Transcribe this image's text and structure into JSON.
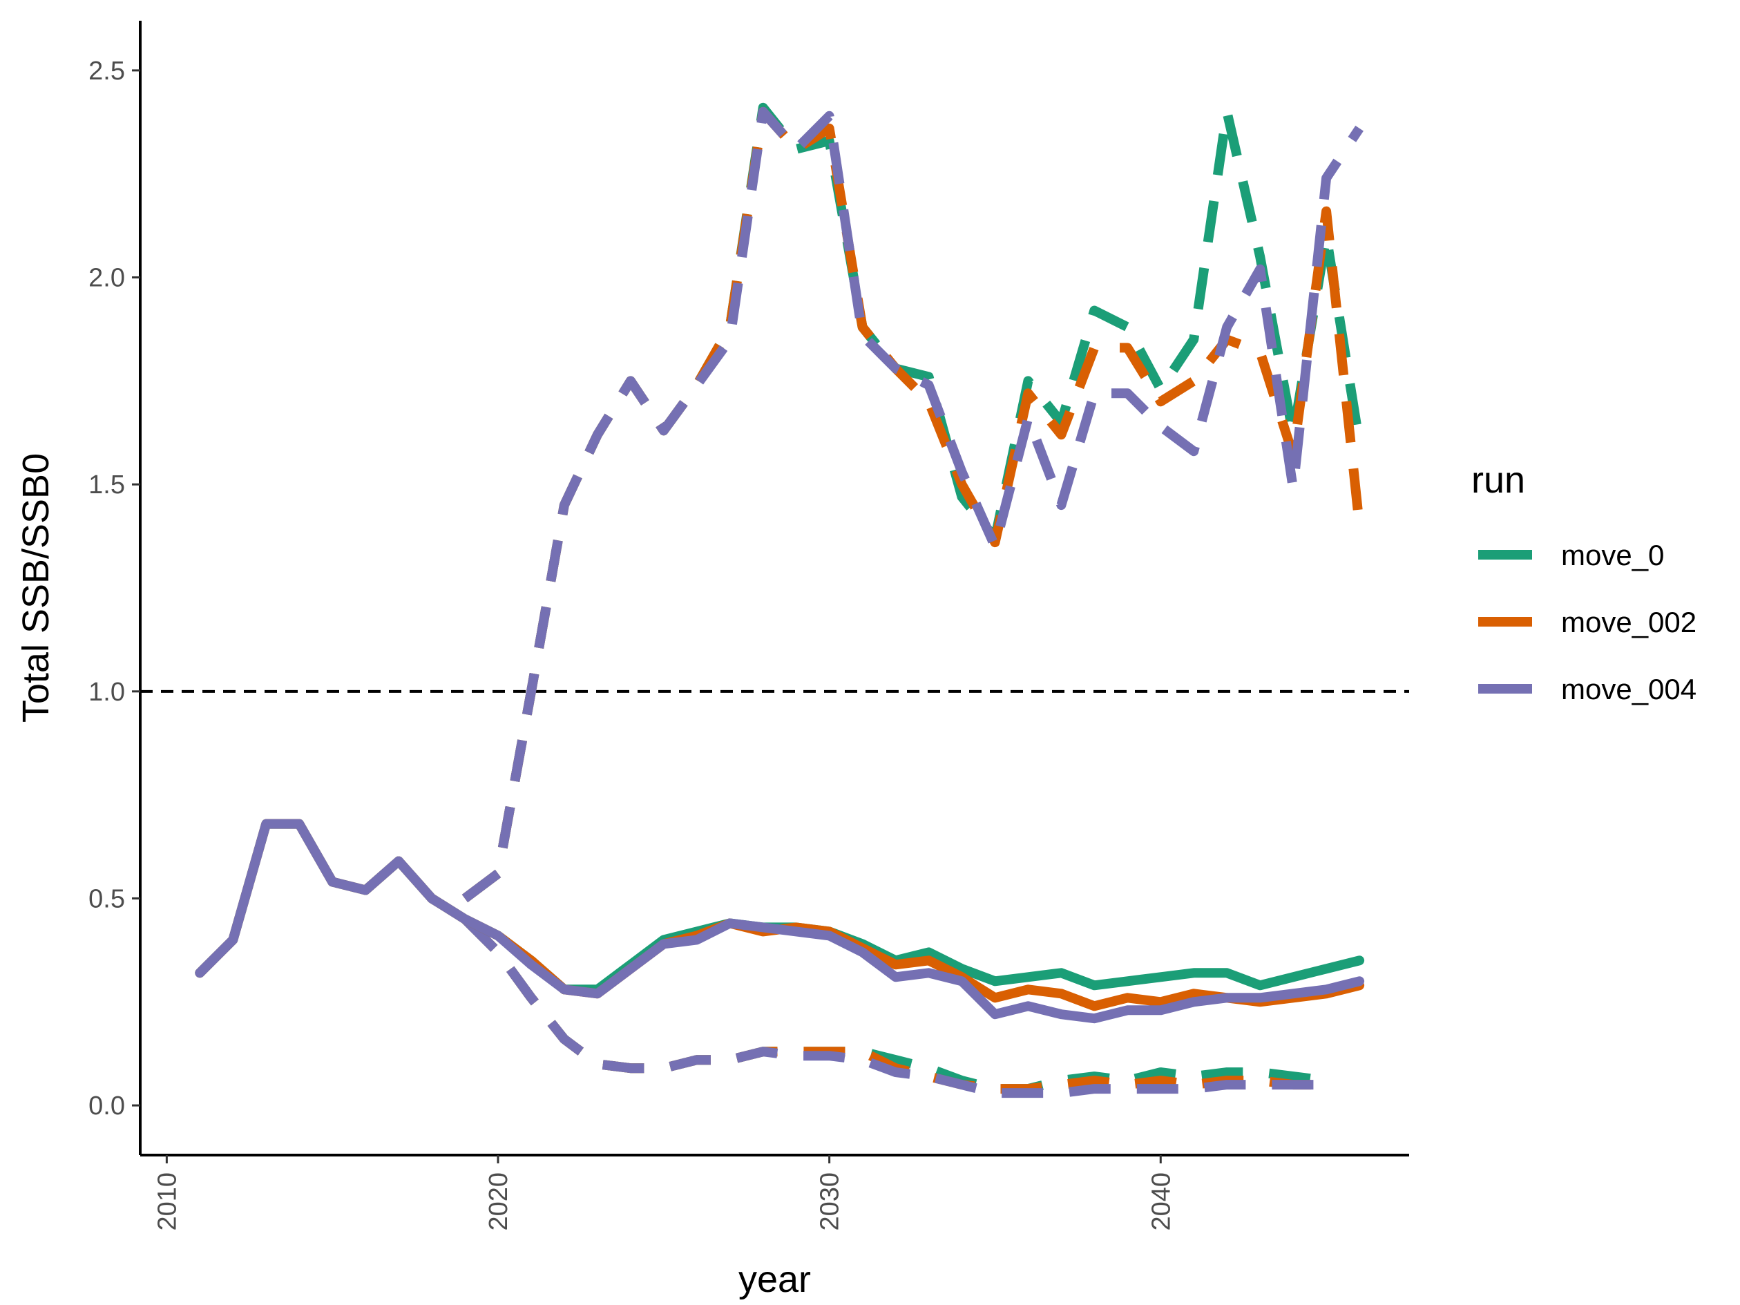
{
  "chart_data": {
    "type": "line",
    "xlabel": "year",
    "ylabel": "Total SSB/SSB0",
    "xlim": [
      2009.2,
      2047.5
    ],
    "ylim": [
      -0.12,
      2.62
    ],
    "xticks": [
      2010,
      2020,
      2030,
      2040
    ],
    "xtick_labels": [
      "2010",
      "2020",
      "2030",
      "2040"
    ],
    "yticks": [
      0.0,
      0.5,
      1.0,
      1.5,
      2.0,
      2.5
    ],
    "ytick_labels": [
      "0.0",
      "0.5",
      "1.0",
      "1.5",
      "2.0",
      "2.5"
    ],
    "reference_line": {
      "y": 1.0,
      "style": "dashed",
      "color": "#000000"
    },
    "grid": false,
    "legend": {
      "title": "run",
      "position": "right",
      "entries": [
        "move_0",
        "move_002",
        "move_004"
      ]
    },
    "colors": {
      "move_0": "#1b9e77",
      "move_002": "#d95f02",
      "move_004": "#7570b3"
    },
    "series": [
      {
        "name": "move_0",
        "style": "dashed",
        "color": "#1b9e77",
        "x": [
          2019,
          2020,
          2021,
          2022,
          2023,
          2024,
          2025,
          2026,
          2027,
          2028,
          2029,
          2030,
          2031,
          2032,
          2033,
          2034,
          2035,
          2036,
          2037,
          2038,
          2039,
          2040,
          2041,
          2042,
          2043,
          2044,
          2045,
          2046
        ],
        "y": [
          0.5,
          0.56,
          1.0,
          1.45,
          1.62,
          1.75,
          1.63,
          1.74,
          1.88,
          2.41,
          2.31,
          2.33,
          1.88,
          1.78,
          1.76,
          1.47,
          1.37,
          1.75,
          1.65,
          1.92,
          1.88,
          1.73,
          1.85,
          2.4,
          2.05,
          1.62,
          2.1,
          1.6
        ]
      },
      {
        "name": "move_002",
        "style": "dashed",
        "color": "#d95f02",
        "x": [
          2019,
          2020,
          2021,
          2022,
          2023,
          2024,
          2025,
          2026,
          2027,
          2028,
          2029,
          2030,
          2031,
          2032,
          2033,
          2034,
          2035,
          2036,
          2037,
          2038,
          2039,
          2040,
          2041,
          2042,
          2043,
          2044,
          2045,
          2046
        ],
        "y": [
          0.5,
          0.56,
          1.0,
          1.45,
          1.62,
          1.75,
          1.63,
          1.74,
          1.88,
          2.4,
          2.31,
          2.36,
          1.88,
          1.78,
          1.7,
          1.5,
          1.36,
          1.72,
          1.62,
          1.83,
          1.83,
          1.7,
          1.75,
          1.85,
          1.82,
          1.57,
          2.16,
          1.4
        ]
      },
      {
        "name": "move_004",
        "style": "dashed",
        "color": "#7570b3",
        "x": [
          2019,
          2020,
          2021,
          2022,
          2023,
          2024,
          2025,
          2026,
          2027,
          2028,
          2029,
          2030,
          2031,
          2032,
          2033,
          2034,
          2035,
          2036,
          2037,
          2038,
          2039,
          2040,
          2041,
          2042,
          2043,
          2044,
          2045,
          2046
        ],
        "y": [
          0.5,
          0.56,
          1.0,
          1.45,
          1.62,
          1.75,
          1.63,
          1.74,
          1.85,
          2.4,
          2.31,
          2.39,
          1.86,
          1.78,
          1.74,
          1.53,
          1.35,
          1.66,
          1.45,
          1.72,
          1.72,
          1.64,
          1.58,
          1.88,
          2.02,
          1.49,
          2.24,
          2.36
        ]
      },
      {
        "name": "move_0",
        "style": "dashed",
        "color": "#1b9e77",
        "x": [
          2019,
          2020,
          2021,
          2022,
          2023,
          2024,
          2025,
          2026,
          2027,
          2028,
          2029,
          2030,
          2031,
          2032,
          2033,
          2034,
          2035,
          2036,
          2037,
          2038,
          2039,
          2040,
          2041,
          2042,
          2043,
          2044,
          2045
        ],
        "y": [
          0.45,
          0.37,
          0.26,
          0.16,
          0.1,
          0.09,
          0.09,
          0.11,
          0.11,
          0.13,
          0.13,
          0.13,
          0.13,
          0.11,
          0.09,
          0.06,
          0.04,
          0.04,
          0.06,
          0.07,
          0.06,
          0.08,
          0.07,
          0.08,
          0.08,
          0.07,
          0.06
        ]
      },
      {
        "name": "move_002",
        "style": "dashed",
        "color": "#d95f02",
        "x": [
          2019,
          2020,
          2021,
          2022,
          2023,
          2024,
          2025,
          2026,
          2027,
          2028,
          2029,
          2030,
          2031,
          2032,
          2033,
          2034,
          2035,
          2036,
          2037,
          2038,
          2039,
          2040,
          2041,
          2042,
          2043,
          2044,
          2045
        ],
        "y": [
          0.45,
          0.37,
          0.26,
          0.16,
          0.1,
          0.09,
          0.09,
          0.11,
          0.11,
          0.13,
          0.13,
          0.13,
          0.13,
          0.09,
          0.07,
          0.05,
          0.04,
          0.04,
          0.05,
          0.06,
          0.05,
          0.06,
          0.05,
          0.06,
          0.06,
          0.05,
          0.05
        ]
      },
      {
        "name": "move_004",
        "style": "dashed",
        "color": "#7570b3",
        "x": [
          2019,
          2020,
          2021,
          2022,
          2023,
          2024,
          2025,
          2026,
          2027,
          2028,
          2029,
          2030,
          2031,
          2032,
          2033,
          2034,
          2035,
          2036,
          2037,
          2038,
          2039,
          2040,
          2041,
          2042,
          2043,
          2044,
          2045
        ],
        "y": [
          0.45,
          0.37,
          0.26,
          0.16,
          0.1,
          0.09,
          0.09,
          0.11,
          0.11,
          0.13,
          0.12,
          0.12,
          0.11,
          0.08,
          0.07,
          0.05,
          0.03,
          0.03,
          0.03,
          0.04,
          0.04,
          0.04,
          0.04,
          0.05,
          0.05,
          0.05,
          0.05
        ]
      },
      {
        "name": "move_0",
        "style": "solid",
        "color": "#1b9e77",
        "x": [
          2011,
          2012,
          2013,
          2014,
          2015,
          2016,
          2017,
          2018,
          2019,
          2020,
          2021,
          2022,
          2023,
          2024,
          2025,
          2026,
          2027,
          2028,
          2029,
          2030,
          2031,
          2032,
          2033,
          2034,
          2035,
          2036,
          2037,
          2038,
          2039,
          2040,
          2041,
          2042,
          2043,
          2044,
          2045,
          2046
        ],
        "y": [
          0.32,
          0.4,
          0.68,
          0.68,
          0.54,
          0.52,
          0.59,
          0.5,
          0.45,
          0.41,
          0.35,
          0.28,
          0.28,
          0.34,
          0.4,
          0.42,
          0.44,
          0.43,
          0.43,
          0.42,
          0.39,
          0.35,
          0.37,
          0.33,
          0.3,
          0.31,
          0.32,
          0.29,
          0.3,
          0.31,
          0.32,
          0.32,
          0.29,
          0.31,
          0.33,
          0.35
        ]
      },
      {
        "name": "move_002",
        "style": "solid",
        "color": "#d95f02",
        "x": [
          2011,
          2012,
          2013,
          2014,
          2015,
          2016,
          2017,
          2018,
          2019,
          2020,
          2021,
          2022,
          2023,
          2024,
          2025,
          2026,
          2027,
          2028,
          2029,
          2030,
          2031,
          2032,
          2033,
          2034,
          2035,
          2036,
          2037,
          2038,
          2039,
          2040,
          2041,
          2042,
          2043,
          2044,
          2045,
          2046
        ],
        "y": [
          0.32,
          0.4,
          0.68,
          0.68,
          0.54,
          0.52,
          0.59,
          0.5,
          0.45,
          0.41,
          0.35,
          0.28,
          0.27,
          0.33,
          0.39,
          0.41,
          0.44,
          0.42,
          0.43,
          0.42,
          0.38,
          0.34,
          0.35,
          0.31,
          0.26,
          0.28,
          0.27,
          0.24,
          0.26,
          0.25,
          0.27,
          0.26,
          0.25,
          0.26,
          0.27,
          0.29
        ]
      },
      {
        "name": "move_004",
        "style": "solid",
        "color": "#7570b3",
        "x": [
          2011,
          2012,
          2013,
          2014,
          2015,
          2016,
          2017,
          2018,
          2019,
          2020,
          2021,
          2022,
          2023,
          2024,
          2025,
          2026,
          2027,
          2028,
          2029,
          2030,
          2031,
          2032,
          2033,
          2034,
          2035,
          2036,
          2037,
          2038,
          2039,
          2040,
          2041,
          2042,
          2043,
          2044,
          2045,
          2046
        ],
        "y": [
          0.32,
          0.4,
          0.68,
          0.68,
          0.54,
          0.52,
          0.59,
          0.5,
          0.45,
          0.41,
          0.34,
          0.28,
          0.27,
          0.33,
          0.39,
          0.4,
          0.44,
          0.43,
          0.42,
          0.41,
          0.37,
          0.31,
          0.32,
          0.3,
          0.22,
          0.24,
          0.22,
          0.21,
          0.23,
          0.23,
          0.25,
          0.26,
          0.26,
          0.27,
          0.28,
          0.3
        ]
      }
    ]
  }
}
